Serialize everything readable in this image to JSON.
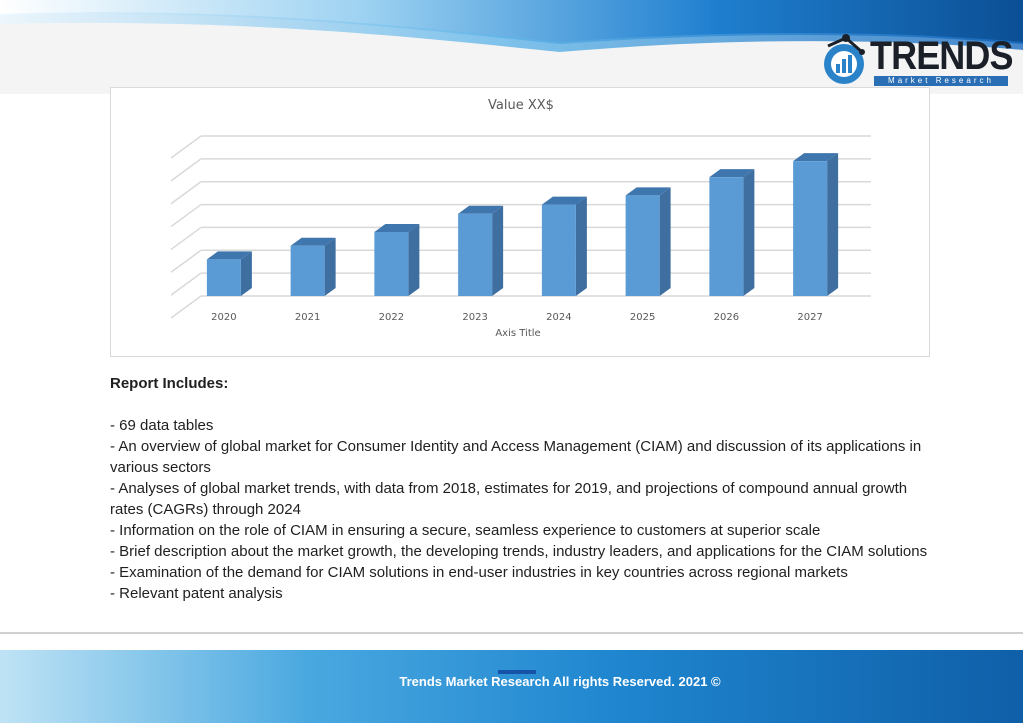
{
  "brand": {
    "name": "TRENDS",
    "tagline": "Market Research"
  },
  "chart_data": {
    "type": "bar",
    "title": "Value XX$",
    "xlabel": "Axis Title",
    "ylabel": "",
    "categories": [
      "2020",
      "2021",
      "2022",
      "2023",
      "2024",
      "2025",
      "2026",
      "2027"
    ],
    "values": [
      1.6,
      2.2,
      2.8,
      3.6,
      4.0,
      4.4,
      5.2,
      5.9
    ],
    "ylim": [
      0,
      7
    ],
    "grid": true,
    "style": "3d-column",
    "bar_color": "#5b9bd5",
    "bar_side_color": "#3e6fa0",
    "bar_top_color": "#3f76ad"
  },
  "report": {
    "heading": "Report Includes:",
    "items": [
      "- 69 data tables",
      "- An overview of global market for Consumer Identity and Access Management (CIAM) and discussion of its applications in various sectors",
      "- Analyses of global market trends, with data from 2018, estimates for 2019, and projections of compound annual growth rates (CAGRs) through 2024",
      "- Information on the role of CIAM in ensuring a secure, seamless experience to customers at superior scale",
      "- Brief description about the market growth, the developing trends, industry leaders, and applications for the CIAM solutions",
      "- Examination of the demand for CIAM solutions in end-user industries in key countries across regional markets",
      "- Relevant patent analysis"
    ]
  },
  "footer": {
    "text": "Trends Market Research All rights Reserved. 2021 ©"
  }
}
